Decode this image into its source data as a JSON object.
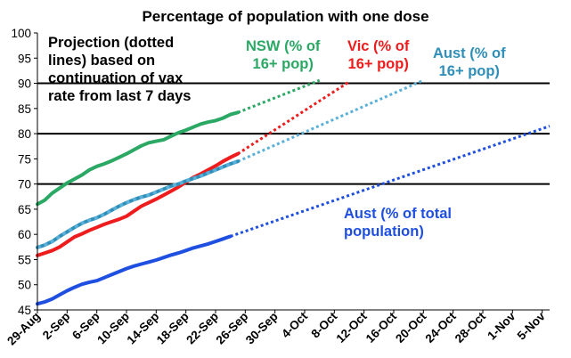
{
  "chart_data": {
    "type": "line",
    "title": "Percentage of population with one dose",
    "ylim": [
      45,
      100
    ],
    "yticks": [
      45,
      50,
      55,
      60,
      65,
      70,
      75,
      80,
      85,
      90,
      95,
      100
    ],
    "x_tick_labels": [
      "29-Aug",
      "2-Sep",
      "6-Sep",
      "10-Sep",
      "14-Sep",
      "18-Sep",
      "22-Sep",
      "26-Sep",
      "30-Sep",
      "4-Oct",
      "8-Oct",
      "12-Oct",
      "16-Oct",
      "20-Oct",
      "24-Oct",
      "28-Oct",
      "1-Nov",
      "5-Nov"
    ],
    "x_start": "2021-08-29",
    "x_end": "2021-11-06",
    "grid": "horizontal lines at 70, 80 and 90",
    "reference_lines": [
      70,
      80,
      90
    ],
    "annotation": {
      "line1": "Projection (dotted",
      "line2": "lines) based on",
      "line3": "continuation of vax",
      "line4": "rate from last 7 days"
    },
    "series": [
      {
        "name_line1": "NSW (% of",
        "name_line2": "16+ pop)",
        "color": "#2aa864",
        "actual": [
          [
            "2021-08-29",
            66.0
          ],
          [
            "2021-08-30",
            66.8
          ],
          [
            "2021-08-31",
            68.2
          ],
          [
            "2021-09-01",
            69.2
          ],
          [
            "2021-09-02",
            70.2
          ],
          [
            "2021-09-03",
            71.0
          ],
          [
            "2021-09-04",
            71.8
          ],
          [
            "2021-09-05",
            72.8
          ],
          [
            "2021-09-06",
            73.5
          ],
          [
            "2021-09-07",
            74.0
          ],
          [
            "2021-09-08",
            74.6
          ],
          [
            "2021-09-09",
            75.3
          ],
          [
            "2021-09-10",
            76.0
          ],
          [
            "2021-09-11",
            76.8
          ],
          [
            "2021-09-12",
            77.6
          ],
          [
            "2021-09-13",
            78.2
          ],
          [
            "2021-09-14",
            78.5
          ],
          [
            "2021-09-15",
            78.8
          ],
          [
            "2021-09-16",
            79.5
          ],
          [
            "2021-09-17",
            80.2
          ],
          [
            "2021-09-18",
            80.7
          ],
          [
            "2021-09-19",
            81.3
          ],
          [
            "2021-09-20",
            81.9
          ],
          [
            "2021-09-21",
            82.3
          ],
          [
            "2021-09-22",
            82.6
          ],
          [
            "2021-09-23",
            83.1
          ],
          [
            "2021-09-24",
            83.8
          ],
          [
            "2021-09-25",
            84.2
          ]
        ],
        "projection": [
          [
            "2021-09-25",
            84.2
          ],
          [
            "2021-10-06",
            90.6
          ]
        ]
      },
      {
        "name_line1": "Vic (% of",
        "name_line2": "16+ pop)",
        "color": "#ee1c1c",
        "actual": [
          [
            "2021-08-29",
            55.8
          ],
          [
            "2021-08-30",
            56.3
          ],
          [
            "2021-08-31",
            56.8
          ],
          [
            "2021-09-01",
            57.5
          ],
          [
            "2021-09-02",
            58.5
          ],
          [
            "2021-09-03",
            59.5
          ],
          [
            "2021-09-04",
            60.1
          ],
          [
            "2021-09-05",
            60.8
          ],
          [
            "2021-09-06",
            61.4
          ],
          [
            "2021-09-07",
            62.0
          ],
          [
            "2021-09-08",
            62.5
          ],
          [
            "2021-09-09",
            63.0
          ],
          [
            "2021-09-10",
            63.6
          ],
          [
            "2021-09-11",
            64.6
          ],
          [
            "2021-09-12",
            65.6
          ],
          [
            "2021-09-13",
            66.3
          ],
          [
            "2021-09-14",
            67.0
          ],
          [
            "2021-09-15",
            67.8
          ],
          [
            "2021-09-16",
            68.6
          ],
          [
            "2021-09-17",
            69.4
          ],
          [
            "2021-09-18",
            70.4
          ],
          [
            "2021-09-19",
            71.3
          ],
          [
            "2021-09-20",
            72.0
          ],
          [
            "2021-09-21",
            72.8
          ],
          [
            "2021-09-22",
            73.6
          ],
          [
            "2021-09-23",
            74.5
          ],
          [
            "2021-09-24",
            75.3
          ],
          [
            "2021-09-25",
            76.0
          ]
        ],
        "projection": [
          [
            "2021-09-25",
            76.0
          ],
          [
            "2021-10-10",
            90.3
          ]
        ]
      },
      {
        "name_line1": "Aust (% of",
        "name_line2": "16+ pop)",
        "color": "#2f8fb8",
        "dash_color": "#5ab0d8",
        "actual": [
          [
            "2021-08-29",
            57.4
          ],
          [
            "2021-08-30",
            57.9
          ],
          [
            "2021-08-31",
            58.6
          ],
          [
            "2021-09-01",
            59.6
          ],
          [
            "2021-09-02",
            60.5
          ],
          [
            "2021-09-03",
            61.4
          ],
          [
            "2021-09-04",
            62.2
          ],
          [
            "2021-09-05",
            62.8
          ],
          [
            "2021-09-06",
            63.3
          ],
          [
            "2021-09-07",
            64.0
          ],
          [
            "2021-09-08",
            64.8
          ],
          [
            "2021-09-09",
            65.6
          ],
          [
            "2021-09-10",
            66.3
          ],
          [
            "2021-09-11",
            66.9
          ],
          [
            "2021-09-12",
            67.4
          ],
          [
            "2021-09-13",
            67.8
          ],
          [
            "2021-09-14",
            68.4
          ],
          [
            "2021-09-15",
            69.0
          ],
          [
            "2021-09-16",
            69.6
          ],
          [
            "2021-09-17",
            70.0
          ],
          [
            "2021-09-18",
            70.6
          ],
          [
            "2021-09-19",
            71.1
          ],
          [
            "2021-09-20",
            71.6
          ],
          [
            "2021-09-21",
            72.2
          ],
          [
            "2021-09-22",
            72.8
          ],
          [
            "2021-09-23",
            73.4
          ],
          [
            "2021-09-24",
            74.0
          ],
          [
            "2021-09-25",
            74.5
          ]
        ],
        "projection": [
          [
            "2021-09-25",
            74.5
          ],
          [
            "2021-10-20",
            90.6
          ]
        ]
      },
      {
        "name_line1": "Aust (% of total",
        "name_line2": "population)",
        "color": "#1e4fe0",
        "actual": [
          [
            "2021-08-29",
            46.2
          ],
          [
            "2021-08-30",
            46.6
          ],
          [
            "2021-08-31",
            47.2
          ],
          [
            "2021-09-01",
            48.0
          ],
          [
            "2021-09-02",
            48.8
          ],
          [
            "2021-09-03",
            49.5
          ],
          [
            "2021-09-04",
            50.1
          ],
          [
            "2021-09-05",
            50.5
          ],
          [
            "2021-09-06",
            50.8
          ],
          [
            "2021-09-07",
            51.4
          ],
          [
            "2021-09-08",
            52.0
          ],
          [
            "2021-09-09",
            52.6
          ],
          [
            "2021-09-10",
            53.2
          ],
          [
            "2021-09-11",
            53.7
          ],
          [
            "2021-09-12",
            54.1
          ],
          [
            "2021-09-13",
            54.5
          ],
          [
            "2021-09-14",
            54.9
          ],
          [
            "2021-09-15",
            55.4
          ],
          [
            "2021-09-16",
            55.9
          ],
          [
            "2021-09-17",
            56.3
          ],
          [
            "2021-09-18",
            56.8
          ],
          [
            "2021-09-19",
            57.3
          ],
          [
            "2021-09-20",
            57.7
          ],
          [
            "2021-09-21",
            58.1
          ],
          [
            "2021-09-22",
            58.6
          ],
          [
            "2021-09-23",
            59.1
          ],
          [
            "2021-09-24",
            59.6
          ]
        ],
        "projection": [
          [
            "2021-09-24",
            59.6
          ],
          [
            "2021-11-06",
            81.5
          ]
        ]
      }
    ]
  }
}
